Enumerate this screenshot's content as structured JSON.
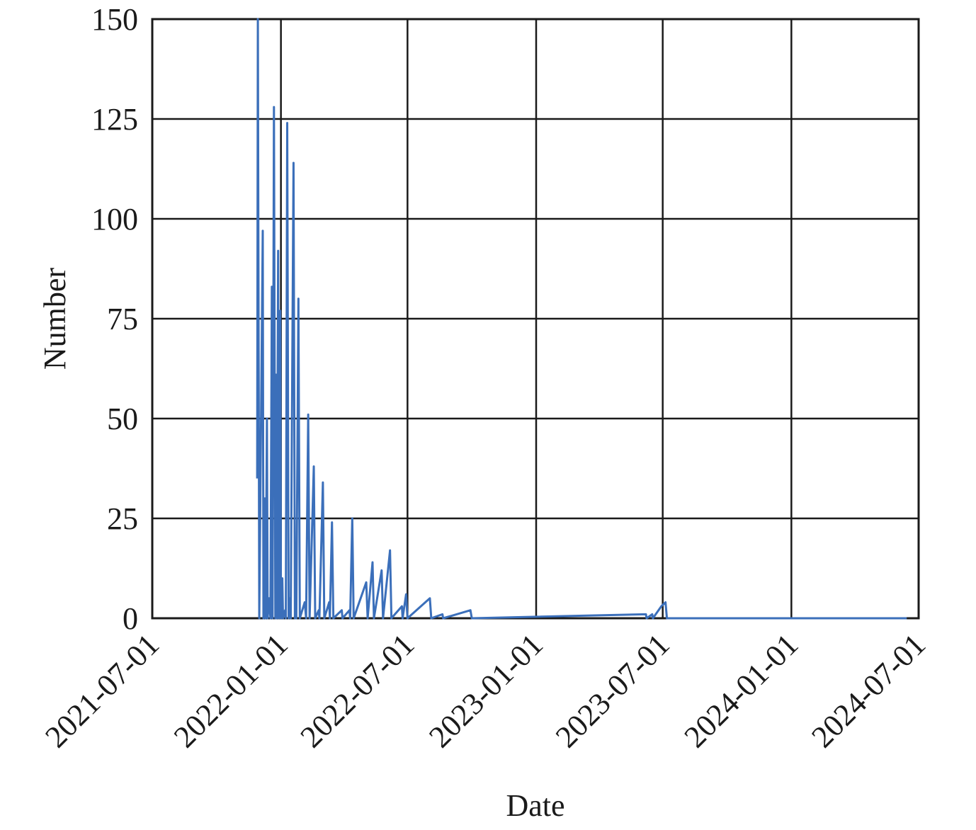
{
  "chart_data": {
    "type": "line",
    "x_label": "Date",
    "y_label": "Number",
    "xlim": [
      "2021-07-01",
      "2024-07-01"
    ],
    "xticks": [
      "2021-07-01",
      "2022-01-01",
      "2022-07-01",
      "2023-01-01",
      "2023-07-01",
      "2024-01-01",
      "2024-07-01"
    ],
    "ylim": [
      0,
      150
    ],
    "yticks": [
      0,
      25,
      50,
      75,
      100,
      125,
      150
    ],
    "grid": true,
    "x": [
      "2021-11-28",
      "2021-11-29",
      "2021-12-01",
      "2021-12-06",
      "2021-12-07",
      "2021-12-09",
      "2021-12-10",
      "2021-12-12",
      "2021-12-13",
      "2021-12-15",
      "2021-12-17",
      "2021-12-19",
      "2021-12-20",
      "2021-12-22",
      "2021-12-24",
      "2021-12-25",
      "2021-12-26",
      "2021-12-28",
      "2021-12-29",
      "2021-12-31",
      "2022-01-01",
      "2022-01-03",
      "2022-01-04",
      "2022-01-07",
      "2022-01-08",
      "2022-01-10",
      "2022-01-12",
      "2022-01-14",
      "2022-01-15",
      "2022-01-19",
      "2022-01-21",
      "2022-01-22",
      "2022-01-23",
      "2022-01-26",
      "2022-01-28",
      "2022-02-04",
      "2022-02-06",
      "2022-02-09",
      "2022-02-11",
      "2022-02-17",
      "2022-02-19",
      "2022-02-24",
      "2022-02-25",
      "2022-03-02",
      "2022-03-04",
      "2022-03-11",
      "2022-03-12",
      "2022-03-15",
      "2022-03-17",
      "2022-03-29",
      "2022-03-30",
      "2022-04-09",
      "2022-04-10",
      "2022-04-13",
      "2022-04-15",
      "2022-05-03",
      "2022-05-05",
      "2022-05-12",
      "2022-05-14",
      "2022-05-25",
      "2022-05-27",
      "2022-06-06",
      "2022-06-08",
      "2022-06-23",
      "2022-06-24",
      "2022-06-29",
      "2022-07-01",
      "2022-08-02",
      "2022-08-04",
      "2022-08-20",
      "2022-08-21",
      "2022-09-29",
      "2022-10-01",
      "2023-06-07",
      "2023-06-08",
      "2023-06-16",
      "2023-06-17",
      "2023-06-29",
      "2023-07-05",
      "2023-07-07",
      "2024-06-14"
    ],
    "series": [
      {
        "name": "Number",
        "color": "#3b6fba",
        "values": [
          35,
          150,
          0,
          97,
          0,
          30,
          0,
          50,
          0,
          5,
          0,
          83,
          0,
          128,
          0,
          61,
          0,
          92,
          0,
          77,
          0,
          10,
          0,
          2,
          0,
          124,
          0,
          5,
          0,
          114,
          0,
          3,
          0,
          80,
          0,
          4,
          0,
          51,
          0,
          38,
          0,
          2,
          0,
          34,
          0,
          4,
          0,
          24,
          0,
          2,
          0,
          2,
          0,
          25,
          0,
          9,
          0,
          14,
          0,
          12,
          0,
          17,
          0,
          3,
          0,
          6,
          0,
          5,
          0,
          1,
          0,
          2,
          0,
          1,
          0,
          1,
          0,
          3,
          4,
          0,
          0
        ]
      }
    ]
  }
}
